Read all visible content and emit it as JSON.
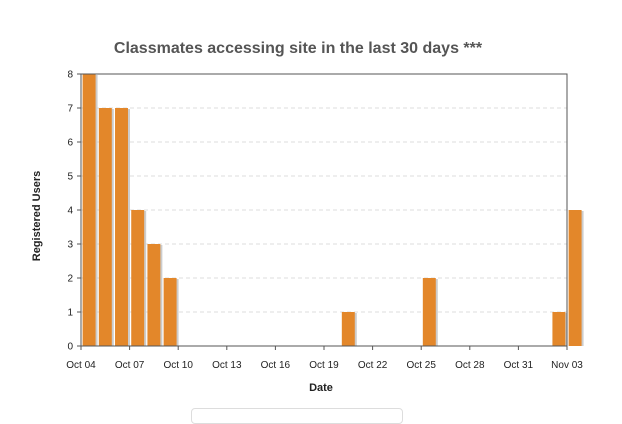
{
  "chart_data": {
    "type": "bar",
    "title": "Classmates accessing site in the last 30 days ***",
    "xlabel": "Date",
    "ylabel": "Registered Users",
    "ylim": [
      0,
      8
    ],
    "yticks": [
      "0",
      "1",
      "2",
      "3",
      "4",
      "5",
      "6",
      "7",
      "8"
    ],
    "x_start": "2015-10-04",
    "x_end": "2015-11-03",
    "xticks": [
      {
        "date": "2015-10-04",
        "label": "Oct 04"
      },
      {
        "date": "2015-10-07",
        "label": "Oct 07"
      },
      {
        "date": "2015-10-10",
        "label": "Oct 10"
      },
      {
        "date": "2015-10-13",
        "label": "Oct 13"
      },
      {
        "date": "2015-10-16",
        "label": "Oct 16"
      },
      {
        "date": "2015-10-19",
        "label": "Oct 19"
      },
      {
        "date": "2015-10-22",
        "label": "Oct 22"
      },
      {
        "date": "2015-10-25",
        "label": "Oct 25"
      },
      {
        "date": "2015-10-28",
        "label": "Oct 28"
      },
      {
        "date": "2015-10-31",
        "label": "Oct 31"
      },
      {
        "date": "2015-11-03",
        "label": "Nov 03"
      }
    ],
    "x": [
      "2015-10-04",
      "2015-10-05",
      "2015-10-06",
      "2015-10-07",
      "2015-10-08",
      "2015-10-09",
      "2015-10-20",
      "2015-10-25",
      "2015-11-02",
      "2015-11-03"
    ],
    "values": [
      8,
      7,
      7,
      4,
      3,
      2,
      1,
      2,
      1,
      4
    ],
    "bar_color": "#e3872a",
    "grid": true
  }
}
